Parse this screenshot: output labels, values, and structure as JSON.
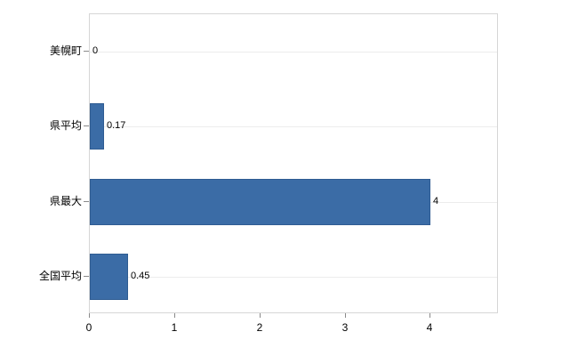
{
  "chart_data": {
    "type": "bar",
    "orientation": "horizontal",
    "title": "",
    "xlabel": "",
    "ylabel": "",
    "categories": [
      "美幌町",
      "県平均",
      "県最大",
      "全国平均"
    ],
    "values": [
      0,
      0.17,
      4,
      0.45
    ],
    "value_labels": [
      "0",
      "0.17",
      "4",
      "0.45"
    ],
    "xlim": [
      0,
      4.8
    ],
    "x_ticks": [
      "0",
      "1",
      "2",
      "3",
      "4"
    ],
    "x_tick_values": [
      0,
      1,
      2,
      3,
      4
    ],
    "grid": "horizontal-light",
    "legend": "none",
    "bar_color": "#3b6ca6",
    "bar_border_color": "#2f5c92"
  }
}
